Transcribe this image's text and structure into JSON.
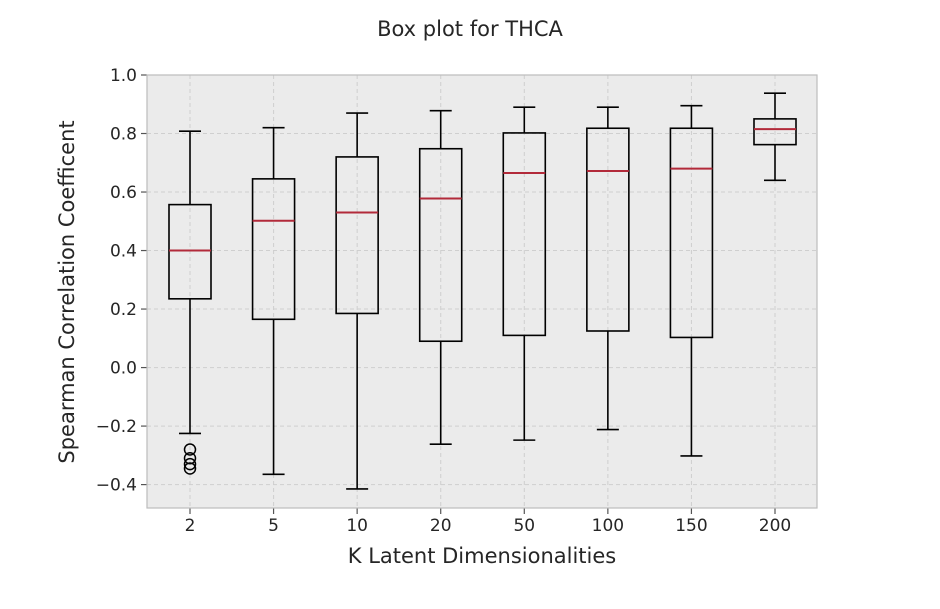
{
  "chart_data": {
    "type": "boxplot",
    "title": "Box plot for THCA",
    "xlabel": "K Latent Dimensionalities",
    "ylabel": "Spearman Correlation Coefficent",
    "ylim": [
      -0.48,
      1.0
    ],
    "yticks": [
      -0.4,
      -0.2,
      0.0,
      0.2,
      0.4,
      0.6,
      0.8,
      1.0
    ],
    "ytick_labels": [
      "−0.4",
      "−0.2",
      "0.0",
      "0.2",
      "0.4",
      "0.6",
      "0.8",
      "1.0"
    ],
    "grid": true,
    "categories": [
      "2",
      "5",
      "10",
      "20",
      "50",
      "100",
      "150",
      "200"
    ],
    "boxes": [
      {
        "whisker_low": -0.225,
        "q1": 0.235,
        "median": 0.4,
        "q3": 0.557,
        "whisker_high": 0.808,
        "fliers": [
          -0.28,
          -0.31,
          -0.33,
          -0.345
        ]
      },
      {
        "whisker_low": -0.365,
        "q1": 0.165,
        "median": 0.502,
        "q3": 0.645,
        "whisker_high": 0.82,
        "fliers": []
      },
      {
        "whisker_low": -0.415,
        "q1": 0.185,
        "median": 0.53,
        "q3": 0.72,
        "whisker_high": 0.87,
        "fliers": []
      },
      {
        "whisker_low": -0.262,
        "q1": 0.09,
        "median": 0.578,
        "q3": 0.748,
        "whisker_high": 0.878,
        "fliers": []
      },
      {
        "whisker_low": -0.248,
        "q1": 0.11,
        "median": 0.665,
        "q3": 0.802,
        "whisker_high": 0.89,
        "fliers": []
      },
      {
        "whisker_low": -0.212,
        "q1": 0.125,
        "median": 0.672,
        "q3": 0.818,
        "whisker_high": 0.89,
        "fliers": []
      },
      {
        "whisker_low": -0.302,
        "q1": 0.103,
        "median": 0.68,
        "q3": 0.818,
        "whisker_high": 0.895,
        "fliers": []
      },
      {
        "whisker_low": 0.64,
        "q1": 0.762,
        "median": 0.815,
        "q3": 0.85,
        "whisker_high": 0.938,
        "fliers": []
      }
    ],
    "colors": {
      "plot_background": "#ebebeb",
      "median": "#b22a3a",
      "box": "#000000",
      "frame": "#bcbcbc"
    }
  }
}
